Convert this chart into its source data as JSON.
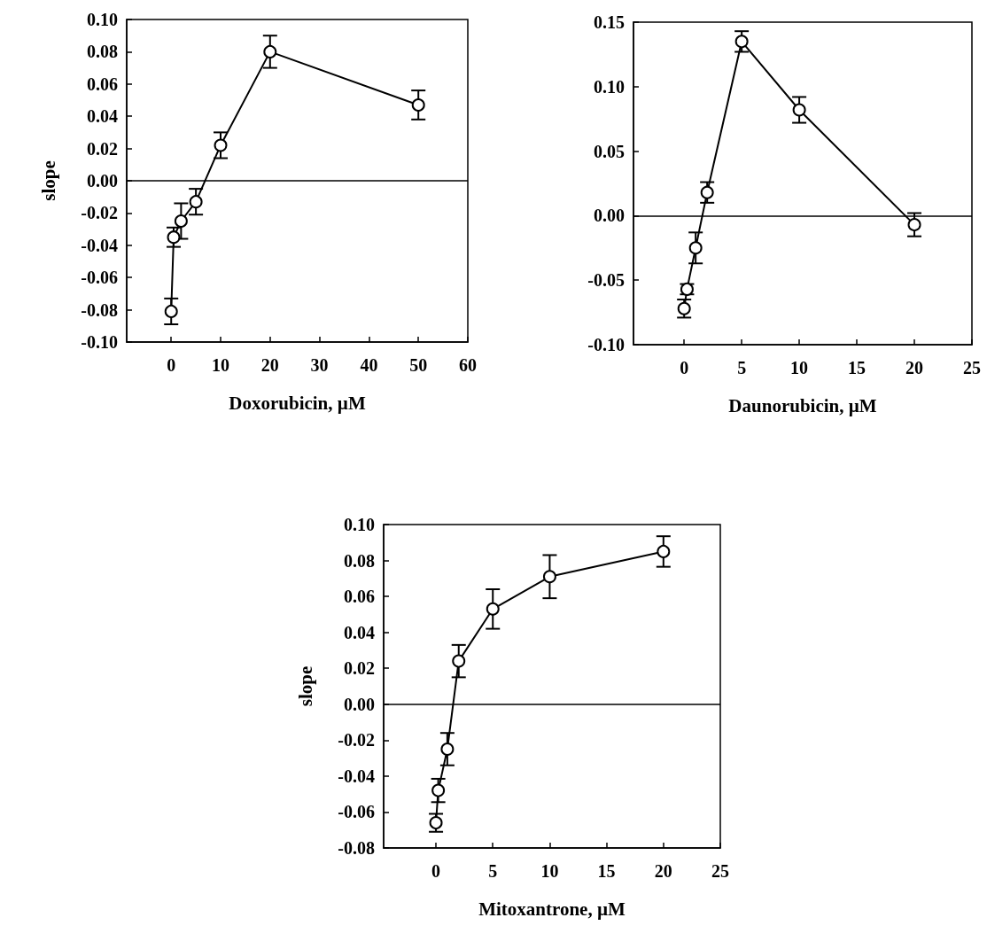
{
  "chart_data": [
    {
      "type": "line",
      "xlabel": "Doxorubicin, µM",
      "ylabel": "slope",
      "marker": "circle",
      "line_style": "solid",
      "xlim": [
        -9,
        60
      ],
      "xticks": [
        0,
        10,
        20,
        30,
        40,
        50,
        60
      ],
      "ylim": [
        -0.1,
        0.1
      ],
      "yticks": [
        {
          "value": -0.1,
          "label": "-0.10"
        },
        {
          "value": -0.08,
          "label": "-0.08"
        },
        {
          "value": -0.06,
          "label": "-0.06"
        },
        {
          "value": -0.04,
          "label": "-0.04"
        },
        {
          "value": -0.02,
          "label": "-0.02"
        },
        {
          "value": 0,
          "label": "0.00"
        },
        {
          "value": 0.02,
          "label": "0.02"
        },
        {
          "value": 0.04,
          "label": "0.04"
        },
        {
          "value": 0.06,
          "label": "0.06"
        },
        {
          "value": 0.08,
          "label": "0.08"
        },
        {
          "value": 0.1,
          "label": "0.10"
        }
      ],
      "ref_lines": [
        {
          "axis": "y",
          "value": 0,
          "color": "#000000"
        }
      ],
      "series": [
        {
          "color": "#000000",
          "x": [
            0,
            0.5,
            2,
            5,
            10,
            20,
            50
          ],
          "values": [
            -0.081,
            -0.035,
            -0.025,
            -0.013,
            0.022,
            0.08,
            0.047
          ],
          "errors": [
            0.008,
            0.006,
            0.011,
            0.008,
            0.008,
            0.01,
            0.009
          ]
        }
      ]
    },
    {
      "type": "line",
      "xlabel": "Daunorubicin, µM",
      "marker": "circle",
      "line_style": "solid",
      "xlim": [
        -4.4,
        25
      ],
      "xticks": [
        0,
        5,
        10,
        15,
        20,
        25
      ],
      "ylim": [
        -0.1,
        0.15
      ],
      "yticks": [
        {
          "value": -0.1,
          "label": "-0.10"
        },
        {
          "value": -0.05,
          "label": "-0.05"
        },
        {
          "value": 0,
          "label": "0.00"
        },
        {
          "value": 0.05,
          "label": "0.05"
        },
        {
          "value": 0.1,
          "label": "0.10"
        },
        {
          "value": 0.15,
          "label": "0.15"
        }
      ],
      "ref_lines": [
        {
          "axis": "y",
          "value": 0,
          "color": "#000000"
        }
      ],
      "series": [
        {
          "color": "#000000",
          "x": [
            0,
            0.25,
            1,
            2,
            5,
            10,
            20
          ],
          "values": [
            -0.072,
            -0.057,
            -0.025,
            0.018,
            0.135,
            0.082,
            -0.007
          ],
          "errors": [
            0.007,
            0.004,
            0.012,
            0.008,
            0.008,
            0.01,
            0.009
          ]
        }
      ]
    },
    {
      "type": "line",
      "xlabel": "Mitoxantrone, µM",
      "ylabel": "slope",
      "marker": "circle",
      "line_style": "solid",
      "xlim": [
        -4.6,
        25
      ],
      "xticks": [
        0,
        5,
        10,
        15,
        20,
        25
      ],
      "ylim": [
        -0.08,
        0.1
      ],
      "yticks": [
        {
          "value": -0.08,
          "label": "-0.08"
        },
        {
          "value": -0.06,
          "label": "-0.06"
        },
        {
          "value": -0.04,
          "label": "-0.04"
        },
        {
          "value": -0.02,
          "label": "-0.02"
        },
        {
          "value": 0,
          "label": "0.00"
        },
        {
          "value": 0.02,
          "label": "0.02"
        },
        {
          "value": 0.04,
          "label": "0.04"
        },
        {
          "value": 0.06,
          "label": "0.06"
        },
        {
          "value": 0.08,
          "label": "0.08"
        },
        {
          "value": 0.1,
          "label": "0.10"
        }
      ],
      "ref_lines": [
        {
          "axis": "y",
          "value": 0,
          "color": "#000000"
        }
      ],
      "series": [
        {
          "color": "#000000",
          "x": [
            0,
            0.2,
            1,
            2,
            5,
            10,
            20
          ],
          "values": [
            -0.066,
            -0.048,
            -0.025,
            0.024,
            0.053,
            0.071,
            0.085
          ],
          "errors": [
            0.005,
            0.0065,
            0.009,
            0.009,
            0.011,
            0.012,
            0.0085
          ]
        }
      ]
    }
  ]
}
